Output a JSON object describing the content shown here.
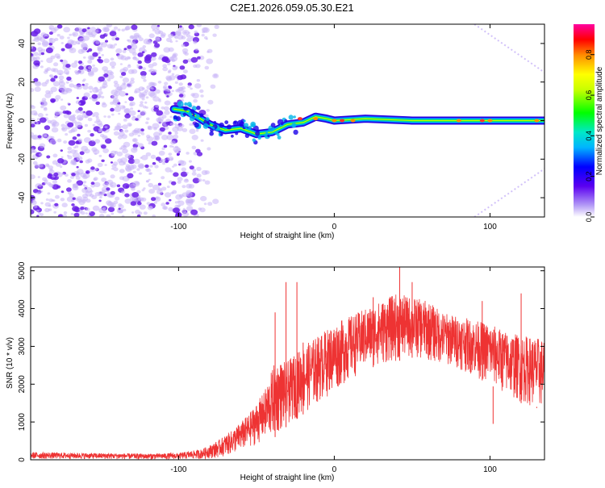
{
  "title": "C2E1.2026.059.05.30.E21",
  "colors": {
    "snr_line": "#ee3333",
    "axis": "#000000",
    "scatter": "#6a1fe8",
    "scatter_light": "#c8b4f8",
    "background": "#ffffff"
  },
  "chart_data": [
    {
      "type": "heatmap",
      "title": "C2E1.2026.059.05.30.E21",
      "xlabel": "Height of straight line (km)",
      "ylabel": "Frequency (Hz)",
      "xlim": [
        -195,
        135
      ],
      "ylim": [
        -50,
        50
      ],
      "xticks": [
        -100,
        0,
        100
      ],
      "xtick_labels": [
        "-100",
        "0",
        "100"
      ],
      "yticks": [
        -40,
        -20,
        0,
        20,
        40
      ],
      "ytick_labels": [
        "-40",
        "-20",
        "0",
        "20",
        "40"
      ],
      "colorbar": {
        "label": "Normalized spectral amplitude",
        "range": [
          0,
          0.95
        ],
        "ticks": [
          0,
          0.2,
          0.4,
          0.6,
          0.8
        ],
        "tick_labels": [
          "0.0",
          "0.2",
          "0.4",
          "0.6",
          "0.8"
        ],
        "colormap": "rainbow (purple-blue-cyan-green-yellow-orange-red-magenta)"
      },
      "features": {
        "noise_region_x": [
          -195,
          -75
        ],
        "dense_noise_x": [
          -195,
          -100
        ],
        "trace": [
          {
            "x": -103,
            "y": 6
          },
          {
            "x": -95,
            "y": 5
          },
          {
            "x": -88,
            "y": 2
          },
          {
            "x": -80,
            "y": -2
          },
          {
            "x": -70,
            "y": -5
          },
          {
            "x": -60,
            "y": -4
          },
          {
            "x": -50,
            "y": -7
          },
          {
            "x": -40,
            "y": -6
          },
          {
            "x": -30,
            "y": -2
          },
          {
            "x": -20,
            "y": -1
          },
          {
            "x": -12,
            "y": 2
          },
          {
            "x": -5,
            "y": 1
          },
          {
            "x": 0,
            "y": 0
          },
          {
            "x": 20,
            "y": 1
          },
          {
            "x": 50,
            "y": 0
          },
          {
            "x": 100,
            "y": 0
          },
          {
            "x": 135,
            "y": 0
          }
        ],
        "diagonal_lines": [
          {
            "from": [
              90,
              50
            ],
            "to": [
              135,
              25
            ]
          },
          {
            "from": [
              90,
              -50
            ],
            "to": [
              135,
              -25
            ]
          }
        ]
      }
    },
    {
      "type": "line",
      "xlabel": "Height of straight line (km)",
      "ylabel": "SNR (10 * v/v)",
      "xlim": [
        -195,
        135
      ],
      "ylim": [
        0,
        5100
      ],
      "xticks": [
        -100,
        0,
        100
      ],
      "xtick_labels": [
        "-100",
        "0",
        "100"
      ],
      "yticks": [
        0,
        1000,
        2000,
        3000,
        4000,
        5000
      ],
      "ytick_labels": [
        "0",
        "1000",
        "2000",
        "3000",
        "4000",
        "5000"
      ],
      "series": [
        {
          "name": "SNR",
          "envelope": {
            "x": [
              -195,
              -160,
              -120,
              -100,
              -85,
              -75,
              -65,
              -55,
              -45,
              -38,
              -30,
              -20,
              -10,
              0,
              10,
              20,
              30,
              40,
              50,
              60,
              70,
              80,
              90,
              100,
              110,
              120,
              135
            ],
            "low": [
              20,
              20,
              10,
              10,
              20,
              50,
              150,
              300,
              500,
              600,
              900,
              1200,
              1500,
              1800,
              2100,
              2400,
              2500,
              2600,
              2700,
              2600,
              2500,
              2400,
              2200,
              2000,
              1700,
              1500,
              1300
            ],
            "high": [
              200,
              180,
              160,
              180,
              280,
              500,
              800,
              1200,
              1800,
              2600,
              2600,
              3000,
              3300,
              3600,
              3800,
              4000,
              4200,
              4400,
              4300,
              4200,
              3900,
              3800,
              3700,
              3600,
              3400,
              3300,
              3200
            ]
          },
          "spikes": [
            {
              "x": -38,
              "y": 3900
            },
            {
              "x": -31,
              "y": 4700
            },
            {
              "x": -24,
              "y": 4700
            },
            {
              "x": -20,
              "y": 3100
            },
            {
              "x": 25,
              "y": 4300
            },
            {
              "x": 42,
              "y": 5100
            },
            {
              "x": 50,
              "y": 4700
            },
            {
              "x": 95,
              "y": 4200
            },
            {
              "x": 120,
              "y": 4400
            },
            {
              "x": 130,
              "y": 1400
            },
            {
              "x": 102,
              "y": 950
            }
          ]
        }
      ]
    }
  ]
}
